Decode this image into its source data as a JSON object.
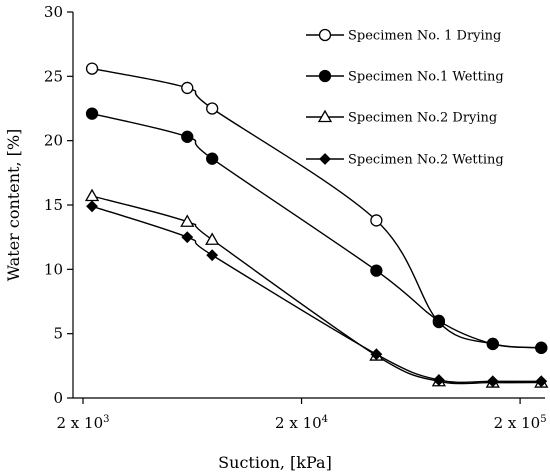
{
  "chart_data": {
    "type": "line",
    "title": "",
    "xlabel": "Suction, [kPa]",
    "ylabel": "Water content, [%]",
    "x_scale": "log",
    "xlim": [
      1800,
      260000
    ],
    "ylim": [
      0,
      30
    ],
    "y_ticks": [
      0,
      5,
      10,
      15,
      20,
      25,
      30
    ],
    "x_ticks": [
      {
        "value": 2000,
        "mantissa": "2 x 10",
        "exponent": "3"
      },
      {
        "value": 20000,
        "mantissa": "2 x 10",
        "exponent": "4"
      },
      {
        "value": 200000,
        "mantissa": "2 x 10",
        "exponent": "5"
      }
    ],
    "grid": false,
    "legend_position": "top-right",
    "series": [
      {
        "name": "Specimen No. 1 Drying",
        "marker": "circle-open",
        "x": [
          2200,
          6000,
          7800,
          44000,
          85000,
          150000,
          250000
        ],
        "y": [
          25.6,
          24.1,
          22.5,
          13.8,
          5.9,
          4.2,
          3.9
        ]
      },
      {
        "name": "Specimen No.1 Wetting",
        "marker": "circle-filled",
        "x": [
          2200,
          6000,
          7800,
          44000,
          85000,
          150000,
          250000
        ],
        "y": [
          22.1,
          20.3,
          18.6,
          9.9,
          6.0,
          4.2,
          3.9
        ]
      },
      {
        "name": "Specimen No.2 Drying",
        "marker": "triangle-open",
        "x": [
          2200,
          6000,
          7800,
          44000,
          85000,
          150000,
          250000
        ],
        "y": [
          15.7,
          13.7,
          12.3,
          3.3,
          1.3,
          1.2,
          1.2
        ]
      },
      {
        "name": "Specimen No.2 Wetting",
        "marker": "diamond-filled",
        "x": [
          2200,
          6000,
          7800,
          44000,
          85000,
          150000,
          250000
        ],
        "y": [
          14.9,
          12.5,
          11.1,
          3.4,
          1.4,
          1.3,
          1.3
        ]
      }
    ]
  }
}
